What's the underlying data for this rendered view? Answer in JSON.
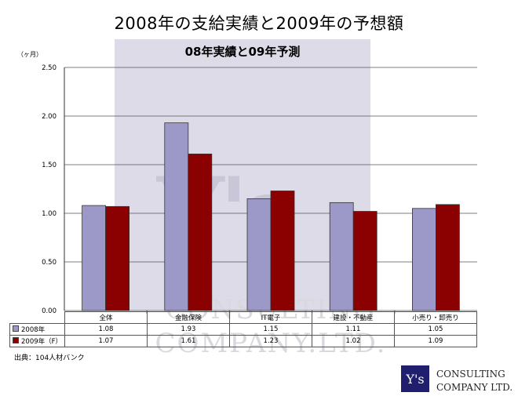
{
  "page": {
    "title": "2008年の支給実績と2009年の予想額",
    "unit": "（ヶ月）",
    "source": "出典：104人材バンク",
    "watermark": {
      "letters": "Y's",
      "line1": "CONSULTING",
      "line2": "COMPANY.LTD."
    },
    "logo": {
      "mark": "Y's",
      "line1": "CONSULTING",
      "line2": "COMPANY LTD."
    }
  },
  "chart_data": {
    "type": "bar",
    "title": "08年実績と09年予測",
    "xlabel": "",
    "ylabel": "",
    "categories": [
      "全体",
      "金融保険",
      "IT電子",
      "建設・不動産",
      "小売り・卸売り"
    ],
    "series": [
      {
        "name": "2008年",
        "values": [
          1.08,
          1.93,
          1.15,
          1.11,
          1.05
        ],
        "color": "#9c98c8"
      },
      {
        "name": "2009年（F）",
        "values": [
          1.07,
          1.61,
          1.23,
          1.02,
          1.09
        ],
        "color": "#8b0000"
      }
    ],
    "ylim": [
      0,
      2.5
    ],
    "yticks": [
      "0.00",
      "0.50",
      "1.00",
      "1.50",
      "2.00",
      "2.50"
    ],
    "table_values": [
      [
        "1.08",
        "1.93",
        "1.15",
        "1.11",
        "1.05"
      ],
      [
        "1.07",
        "1.61",
        "1.23",
        "1.02",
        "1.09"
      ]
    ],
    "grid": true,
    "legend": "data-table"
  }
}
